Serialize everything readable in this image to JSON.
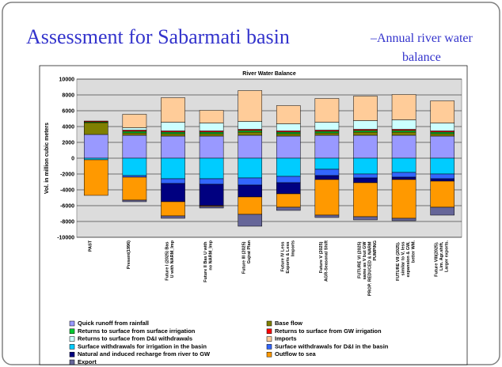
{
  "chart_data": {
    "type": "bar",
    "stacked": true,
    "slide_title": "Assessment for Sabarmati basin",
    "slide_subtitle": "–Annual river water balance",
    "title": "River Water Balance",
    "y_label": "Vol. in million cubic meters",
    "categories": [
      "PAST",
      "Present(1996)",
      "Future I (2025) Bas U with NARM_Imp",
      "Future II Bas U with no NARM_Imp",
      "Future III (2025) Gujrat Plan",
      "Future IV Less Exports & Less Imports",
      "Future V (2025) AGR-Seasonal Shift",
      "FUTURE VI (2025) same as V but GW PROP. REDUCED & NARM PUMPING",
      "FUTURE VII (2025). similar to V, less expansion & GW, better WM.",
      "Future VIII(2025). Lim. Agr.shift, Larger exports."
    ],
    "series": [
      {
        "name": "Quick runoff from rainfall",
        "color": "#9999ff",
        "values": [
          3000,
          2900,
          2800,
          2800,
          2900,
          2800,
          2900,
          2900,
          2900,
          2800
        ]
      },
      {
        "name": "Base flow",
        "color": "#808000",
        "values": [
          1500,
          300,
          300,
          300,
          400,
          300,
          300,
          400,
          400,
          300
        ]
      },
      {
        "name": "Returns to surface from surface irrigation",
        "color": "#00cc33",
        "values": [
          100,
          200,
          200,
          200,
          200,
          200,
          200,
          200,
          200,
          200
        ]
      },
      {
        "name": "Returns to surface from GW irrigation",
        "color": "#ff0000",
        "values": [
          100,
          150,
          150,
          150,
          150,
          150,
          150,
          150,
          150,
          150
        ]
      },
      {
        "name": "Returns to surface from D&I  withdrawals",
        "color": "#ccffff",
        "values": [
          0,
          300,
          1100,
          1000,
          1000,
          900,
          1000,
          1100,
          1200,
          1000
        ]
      },
      {
        "name": "Imports",
        "color": "#ffcc99",
        "values": [
          0,
          1700,
          3100,
          1600,
          3900,
          2300,
          3000,
          3100,
          3200,
          2800
        ]
      },
      {
        "name": "Surface withdrawals for irrigation in the basin",
        "color": "#00ccff",
        "values": [
          -200,
          -2200,
          -2600,
          -2600,
          -2500,
          -2300,
          -1400,
          -2000,
          -1800,
          -2000
        ]
      },
      {
        "name": "Surface withdrawals for D&I in the basin",
        "color": "#3366ff",
        "values": [
          0,
          -200,
          -600,
          -700,
          -900,
          -800,
          -800,
          -500,
          -600,
          -600
        ]
      },
      {
        "name": "Natural and induced recharge from river to GW",
        "color": "#000080",
        "values": [
          0,
          0,
          -2300,
          -2700,
          -1500,
          -1400,
          -500,
          -600,
          -300,
          -300
        ]
      },
      {
        "name": "Outflow to sea",
        "color": "#ff9900",
        "values": [
          -4500,
          -2900,
          -1800,
          -100,
          -2200,
          -1700,
          -4500,
          -4300,
          -4900,
          -3300
        ]
      },
      {
        "name": "Export",
        "color": "#666699",
        "values": [
          0,
          -200,
          -300,
          -200,
          -1500,
          -400,
          -300,
          -400,
          -300,
          -1000
        ]
      }
    ],
    "ylim": [
      -10000,
      10000
    ],
    "yticks": [
      -10000,
      -8000,
      -6000,
      -4000,
      -2000,
      0,
      2000,
      4000,
      6000,
      8000,
      10000
    ],
    "grid": true,
    "legend": "bottom",
    "plot_background": "#dcdcdc"
  }
}
